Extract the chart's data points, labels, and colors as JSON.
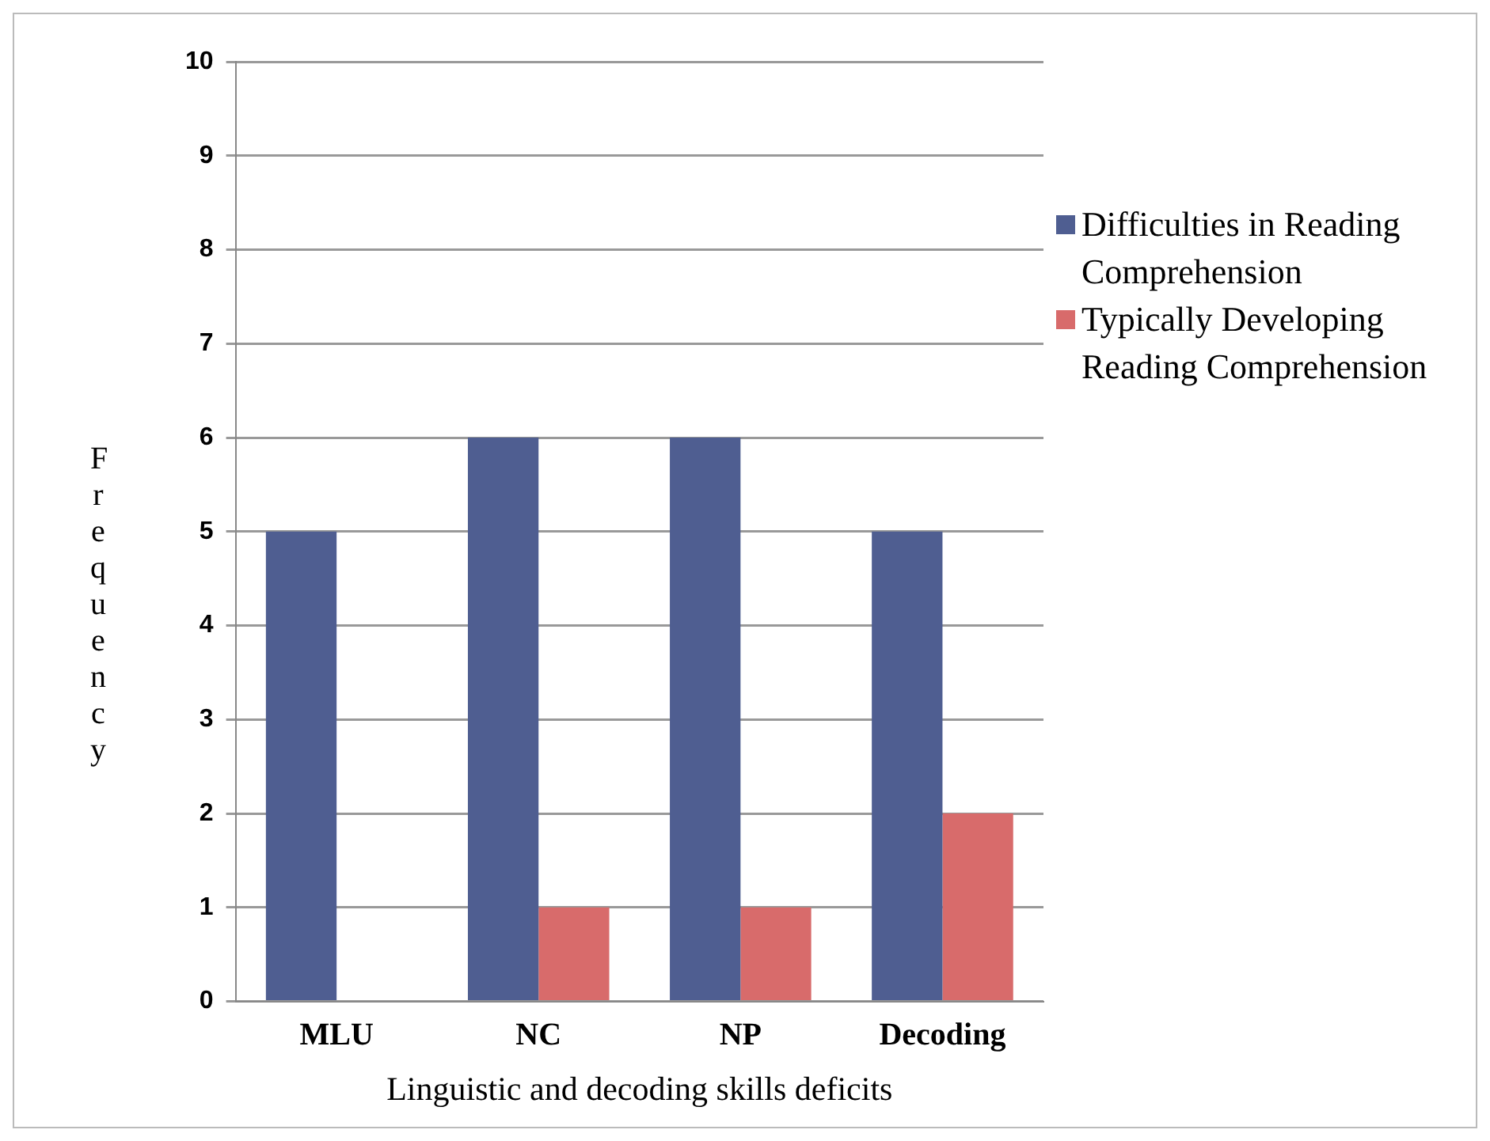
{
  "chart_data": {
    "type": "bar",
    "xlabel": "Linguistic and decoding skills deficits",
    "ylabel": "Frequency",
    "categories": [
      "MLU",
      "NC",
      "NP",
      "Decoding"
    ],
    "series": [
      {
        "name": "Difficulties in Reading Comprehension",
        "color": "#4f5e91",
        "values": [
          5,
          6,
          6,
          5
        ]
      },
      {
        "name": "Typically Developing Reading Comprehension",
        "color": "#d86b6b",
        "values": [
          0,
          1,
          1,
          2
        ]
      }
    ],
    "ylim": [
      0,
      10
    ],
    "yticks": [
      0,
      1,
      2,
      3,
      4,
      5,
      6,
      7,
      8,
      9,
      10
    ],
    "grid": "y",
    "legend": "right"
  }
}
